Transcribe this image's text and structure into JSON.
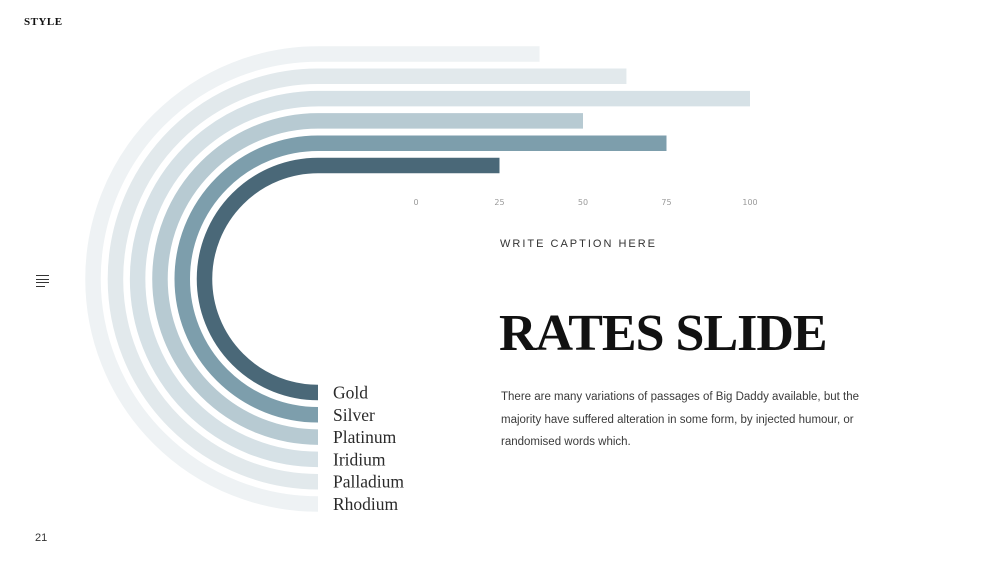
{
  "header": {
    "brand": "STYLE"
  },
  "footer": {
    "page_number": "21"
  },
  "chart_data": {
    "type": "bar",
    "categories": [
      "Gold",
      "Silver",
      "Platinum",
      "Iridium",
      "Palladium",
      "Rhodium"
    ],
    "values": [
      25,
      75,
      50,
      100,
      63,
      37
    ],
    "colors": [
      "#4a6878",
      "#7d9eac",
      "#b7cad2",
      "#d6e1e6",
      "#e2e9ec",
      "#eef2f4"
    ],
    "xticks": [
      "0",
      "25",
      "50",
      "75",
      "100"
    ],
    "xlim": [
      0,
      100
    ],
    "title": "",
    "xlabel": "",
    "ylabel": ""
  },
  "main": {
    "caption": "WRITE CAPTION HERE",
    "title": "RATES SLIDE",
    "body": "There are many variations of passages of Big Daddy available, but the majority have suffered alteration in some form, by injected humour, or randomised words which."
  },
  "icons": {
    "menu": "menu-lines-icon"
  }
}
